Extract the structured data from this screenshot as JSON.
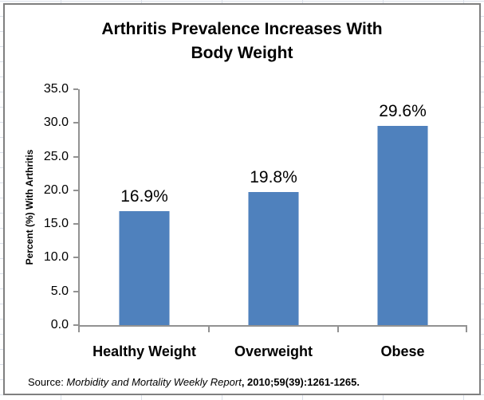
{
  "chart_data": {
    "type": "bar",
    "title": "Arthritis Prevalence Increases With\nBody Weight",
    "categories": [
      "Healthy Weight",
      "Overweight",
      "Obese"
    ],
    "values": [
      16.9,
      19.8,
      29.6
    ],
    "value_labels": [
      "16.9%",
      "19.8%",
      "29.6%"
    ],
    "ylabel": "Percent (%) With Arthritis",
    "xlabel": "",
    "ylim": [
      0,
      35
    ],
    "yticks": [
      0,
      5,
      10,
      15,
      20,
      25,
      30,
      35
    ],
    "ytick_labels": [
      "0.0",
      "5.0",
      "10.0",
      "15.0",
      "20.0",
      "25.0",
      "30.0",
      "35.0"
    ],
    "grid": false,
    "legend": "none",
    "bar_color": "#4f81bd",
    "bar_edge_color": "#a3bcdc",
    "axis_color": "#929292",
    "title_color": "#000000",
    "frame_border_color": "#7f7f7f"
  },
  "source_note": {
    "prefix": "Source: ",
    "journal": "Morbidity and Mortality Weekly Report",
    "citation": ", 2010;59(39):1261-1265."
  }
}
